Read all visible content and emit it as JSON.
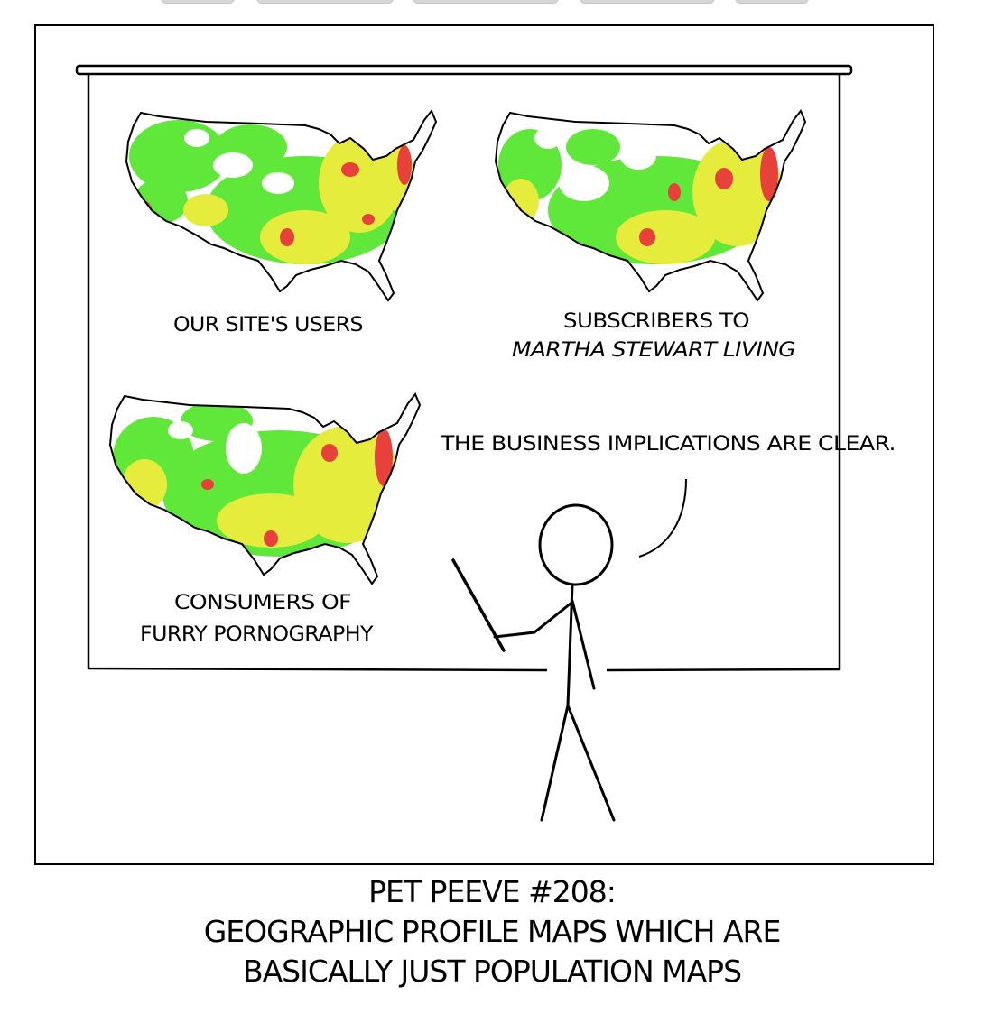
{
  "maps": [
    {
      "label_lines": [
        "OUR SITE'S USERS"
      ]
    },
    {
      "label_lines": [
        "SUBSCRIBERS TO",
        "MARTHA STEWART LIVING"
      ]
    },
    {
      "label_lines": [
        "CONSUMERS OF",
        "FURRY PORNOGRAPHY"
      ]
    }
  ],
  "speech": "THE BUSINESS IMPLICATIONS ARE CLEAR.",
  "caption": {
    "title": "PET PEEVE #208:",
    "line1": "GEOGRAPHIC PROFILE MAPS WHICH ARE",
    "line2": "BASICALLY JUST POPULATION MAPS"
  },
  "colors": {
    "map_high": "#e8403a",
    "map_mid": "#e6ec3c",
    "map_low": "#5fe73a",
    "ink": "#000000"
  }
}
